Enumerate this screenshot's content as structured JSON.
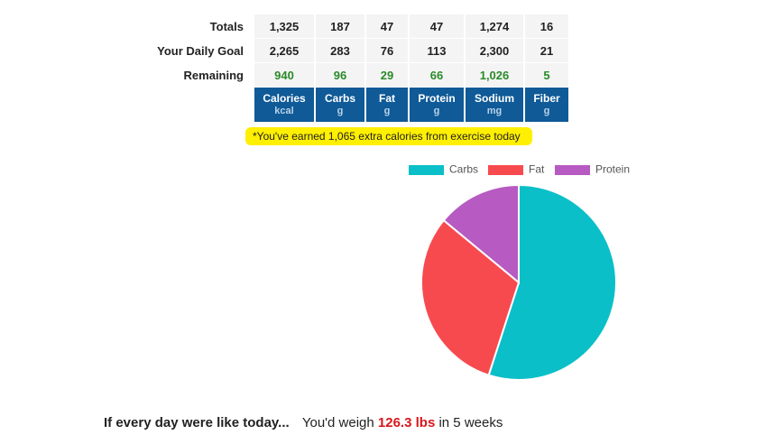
{
  "table": {
    "row_labels": [
      "Totals",
      "Your Daily Goal",
      "Remaining"
    ],
    "rows": [
      [
        "1,325",
        "187",
        "47",
        "47",
        "1,274",
        "16"
      ],
      [
        "2,265",
        "283",
        "76",
        "113",
        "2,300",
        "21"
      ],
      [
        "940",
        "96",
        "29",
        "66",
        "1,026",
        "5"
      ]
    ],
    "columns": [
      {
        "name": "Calories",
        "unit": "kcal"
      },
      {
        "name": "Carbs",
        "unit": "g"
      },
      {
        "name": "Fat",
        "unit": "g"
      },
      {
        "name": "Protein",
        "unit": "g"
      },
      {
        "name": "Sodium",
        "unit": "mg"
      },
      {
        "name": "Fiber",
        "unit": "g"
      }
    ]
  },
  "note": "*You've earned 1,065 extra calories from exercise today",
  "chart_data": {
    "type": "pie",
    "categories": [
      "Carbs",
      "Fat",
      "Protein"
    ],
    "values": [
      55,
      31,
      14
    ],
    "colors": [
      "#0bbfc8",
      "#f74a4f",
      "#b75ac2"
    ]
  },
  "projection": {
    "lead": "If every day were like today...",
    "prefix": "You'd weigh",
    "weight": "126.3 lbs",
    "suffix": "in 5 weeks"
  }
}
